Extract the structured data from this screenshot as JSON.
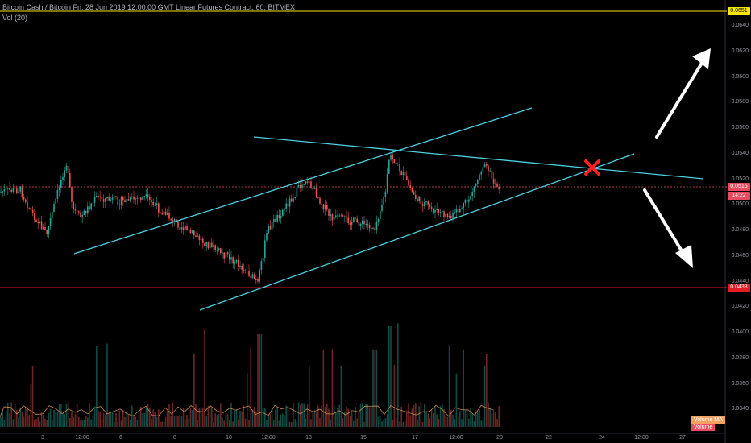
{
  "header": {
    "title": "Bitcoin Cash / Bitcoin Fri. 28 Jun 2019 12:00:00 GMT Linear Futures Contract, 60, BITMEX",
    "volume_label": "Vol (20)"
  },
  "price_axis": {
    "ticks": [
      "0.0640",
      "0.0620",
      "0.0600",
      "0.0580",
      "0.0560",
      "0.0540",
      "0.0520",
      "0.0500",
      "0.0480",
      "0.0460",
      "0.0440",
      "0.0420",
      "0.0400",
      "0.0380",
      "0.0360",
      "0.0340"
    ]
  },
  "tags": {
    "resistance": {
      "label": "0.0651",
      "color": "#f7e600"
    },
    "support": {
      "label": "0.0438",
      "color": "#e31b23"
    },
    "last_price": {
      "label": "0.0516",
      "color": "#e84a5f"
    },
    "countdown": {
      "label": "14:22",
      "color": "#e84a5f"
    }
  },
  "time_axis": {
    "ticks": [
      "3",
      "12:00",
      "6",
      "8",
      "10",
      "12:00",
      "13",
      "15",
      "17",
      "12:00",
      "20",
      "22",
      "24",
      "12:00",
      "27"
    ]
  },
  "legend": {
    "volume_ma": {
      "label": "Volume MA",
      "color": "#f4a261"
    },
    "volume": {
      "label": "Volume",
      "color": "#e84a5f"
    }
  },
  "colors": {
    "bull": "#26a69a",
    "bear": "#ef5350",
    "trendline": "#4dd0e1",
    "arrow": "#ffffff",
    "cross": "#ff1f1f"
  }
}
